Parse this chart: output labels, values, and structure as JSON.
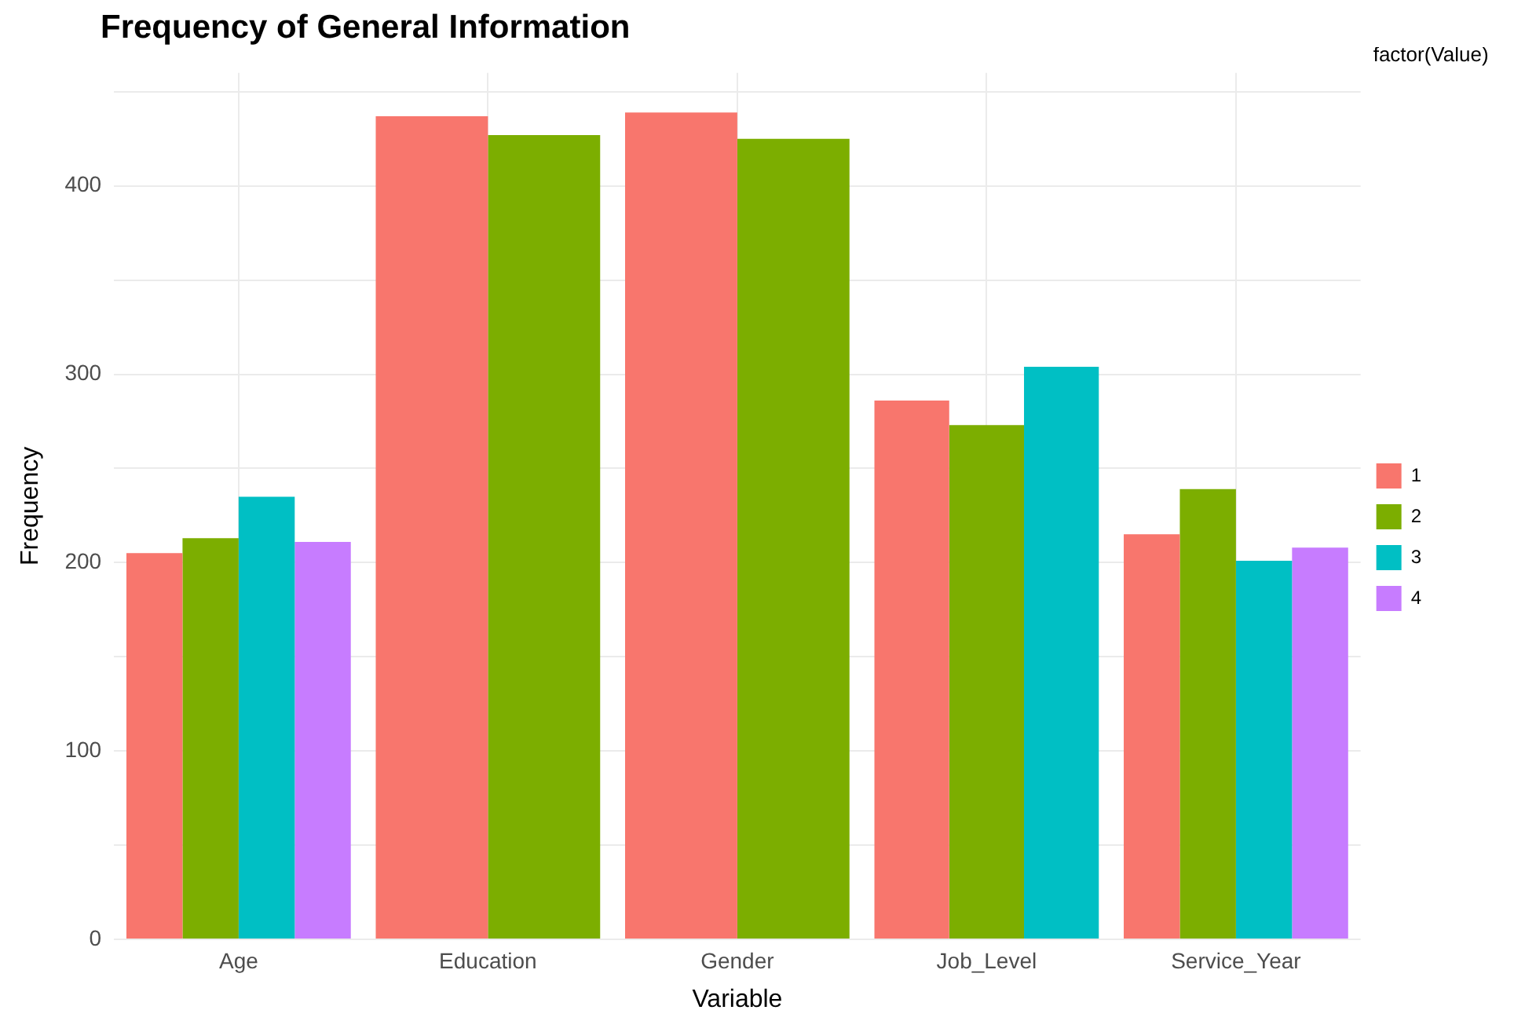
{
  "chart_data": {
    "type": "bar",
    "title": "Frequency of General Information",
    "xlabel": "Variable",
    "ylabel": "Frequency",
    "legend_title": "factor(Value)",
    "categories": [
      "Age",
      "Education",
      "Gender",
      "Job_Level",
      "Service_Year"
    ],
    "series": [
      {
        "name": "1",
        "color": "#f8766d",
        "values": [
          205,
          437,
          439,
          286,
          215
        ]
      },
      {
        "name": "2",
        "color": "#7cae00",
        "values": [
          213,
          427,
          425,
          273,
          239
        ]
      },
      {
        "name": "3",
        "color": "#00bfc4",
        "values": [
          235,
          null,
          null,
          304,
          201
        ]
      },
      {
        "name": "4",
        "color": "#c77cff",
        "values": [
          211,
          null,
          null,
          null,
          208
        ]
      }
    ],
    "ylim": [
      0,
      460
    ],
    "yticks": [
      0,
      {
        "value": 50,
        "label": null
      },
      100,
      {
        "value": 150,
        "label": null
      },
      200,
      {
        "value": 250,
        "label": null
      },
      300,
      {
        "value": 350,
        "label": null
      },
      400,
      {
        "value": 450,
        "label": null
      }
    ],
    "grid": true,
    "legend": "right"
  }
}
